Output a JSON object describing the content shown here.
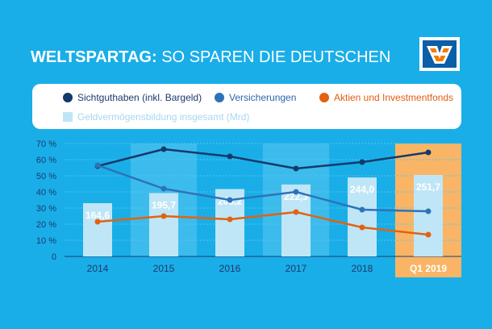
{
  "title": {
    "bold": "WELTSPARTAG:",
    "light": "SO SPAREN DIE DEUTSCHEN"
  },
  "logo": {
    "icon": "volksbank-logo-icon",
    "colors": {
      "blue": "#0b5ea8",
      "orange": "#f07c00"
    }
  },
  "legend": {
    "items": [
      {
        "label": "Sichtguthaben (inkl. Bargeld)",
        "color": "#133a6b"
      },
      {
        "label": "Versicherungen",
        "color": "#2e73b8"
      },
      {
        "label": "Aktien und Investmentfonds",
        "color": "#e3620f"
      },
      {
        "label": "Geldvermögensbildung insgesamt (Mrd)",
        "color": "#bfe6f7"
      }
    ]
  },
  "colors": {
    "background": "#19aee8",
    "highlight": "#f9b565",
    "band": "#3cbcec",
    "bar": "#bfe6f7"
  },
  "chart_data": {
    "type": "bar",
    "categories": [
      "2014",
      "2015",
      "2016",
      "2017",
      "2018",
      "Q1 2019"
    ],
    "ylim": [
      0,
      70
    ],
    "y_ticks": [
      "0",
      "10 %",
      "20 %",
      "30 %",
      "40 %",
      "50 %",
      "60 %",
      "70 %"
    ],
    "bar_values": [
      164.6,
      195.7,
      208.2,
      222.3,
      244.0,
      251.7
    ],
    "bar_labels": [
      "164,6",
      "195,7",
      "208,2",
      "222,3",
      "244,0",
      "251,7"
    ],
    "series": [
      {
        "name": "Sichtguthaben (inkl. Bargeld)",
        "values": [
          56,
          66.5,
          62,
          54.5,
          58.5,
          64.5
        ],
        "color": "#133a6b"
      },
      {
        "name": "Versicherungen",
        "values": [
          56.5,
          42,
          35,
          40,
          29,
          28
        ],
        "color": "#2e73b8"
      },
      {
        "name": "Aktien und Investmentfonds",
        "values": [
          21.5,
          25,
          23,
          27.5,
          18,
          13.5
        ],
        "color": "#e3620f"
      }
    ],
    "highlight_category": "Q1 2019",
    "banded_categories": [
      "2015",
      "2017"
    ],
    "grid": true
  }
}
